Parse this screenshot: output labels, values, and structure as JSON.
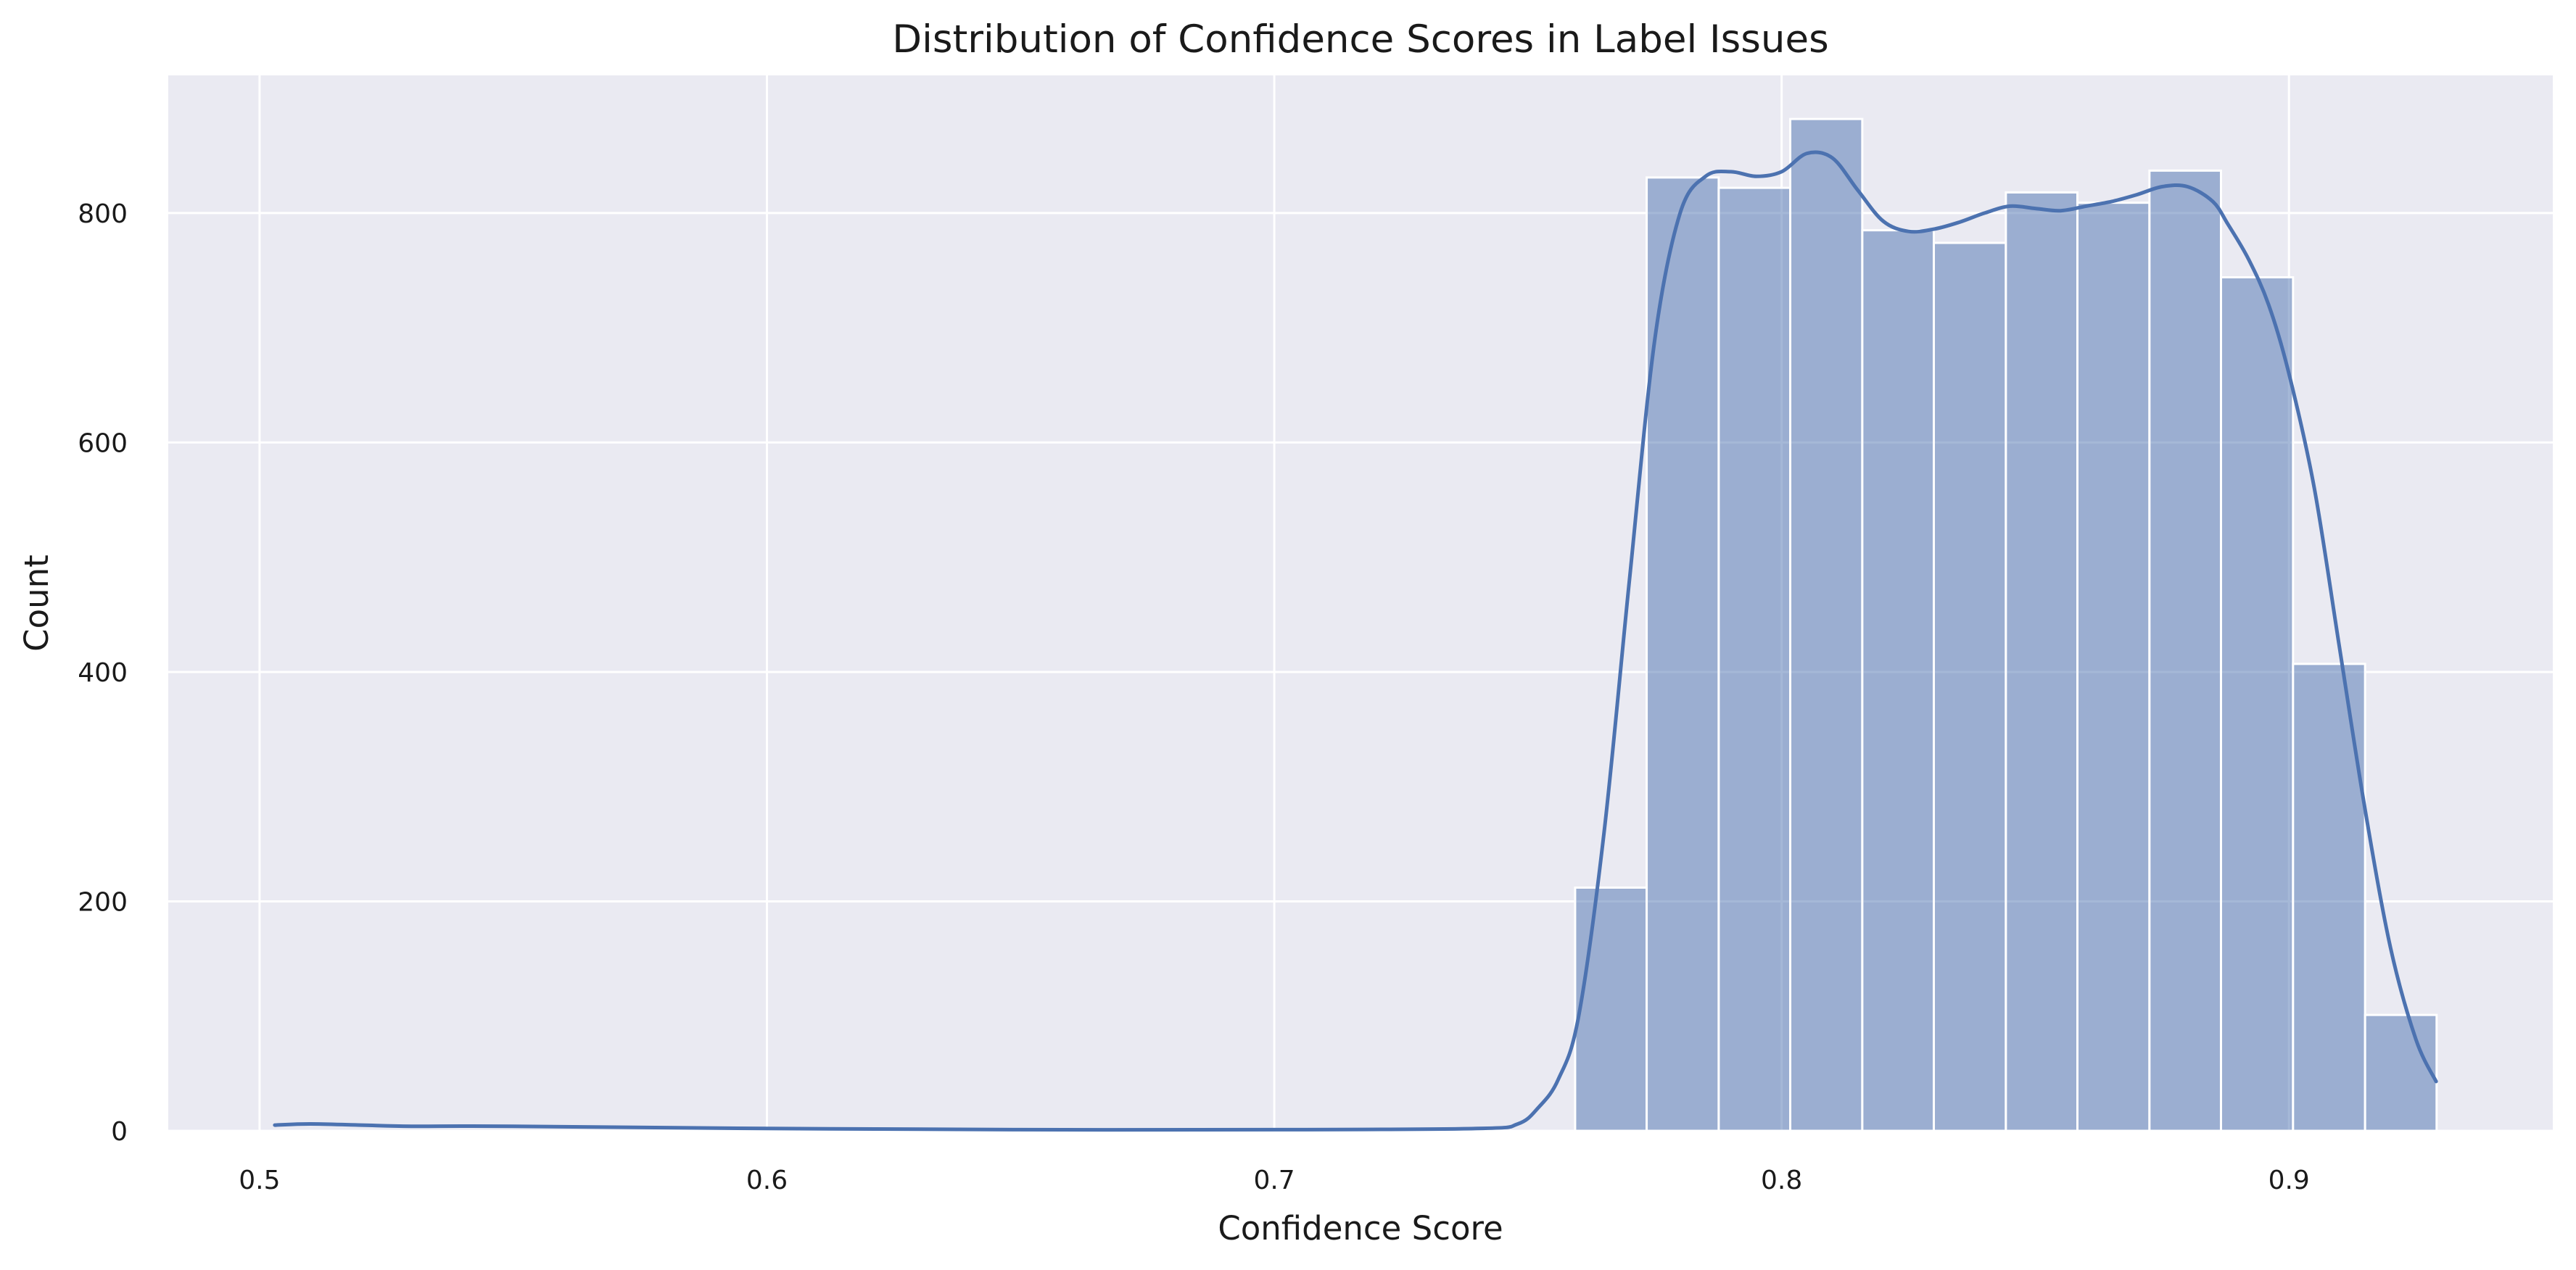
{
  "chart_data": {
    "type": "bar",
    "subtype": "histogram-with-kde",
    "title": "Distribution of Confidence Scores in Label Issues",
    "xlabel": "Confidence Score",
    "ylabel": "Count",
    "xlim": [
      0.482,
      0.952
    ],
    "ylim": [
      0,
      920
    ],
    "grid": true,
    "legend": "none",
    "colors": {
      "background": "#eaeaf2",
      "grid": "#ffffff",
      "bar_fill": "#4c72b0",
      "bar_fill_opacity": 0.5,
      "bar_edge": "#ffffff",
      "kde_line": "#4c72b0"
    },
    "x_ticks": [
      {
        "value": 0.5,
        "label": "0.5"
      },
      {
        "value": 0.6,
        "label": "0.6"
      },
      {
        "value": 0.7,
        "label": "0.7"
      },
      {
        "value": 0.8,
        "label": "0.8"
      },
      {
        "value": 0.9,
        "label": "0.9"
      }
    ],
    "y_ticks": [
      {
        "value": 0,
        "label": "0"
      },
      {
        "value": 200,
        "label": "200"
      },
      {
        "value": 400,
        "label": "400"
      },
      {
        "value": 600,
        "label": "600"
      },
      {
        "value": 800,
        "label": "800"
      }
    ],
    "bins": [
      {
        "x0": 0.7593,
        "x1": 0.7734,
        "count": 212
      },
      {
        "x0": 0.7734,
        "x1": 0.7876,
        "count": 831
      },
      {
        "x0": 0.7876,
        "x1": 0.8017,
        "count": 822
      },
      {
        "x0": 0.8017,
        "x1": 0.8159,
        "count": 882
      },
      {
        "x0": 0.8159,
        "x1": 0.83,
        "count": 785
      },
      {
        "x0": 0.83,
        "x1": 0.8442,
        "count": 774
      },
      {
        "x0": 0.8442,
        "x1": 0.8583,
        "count": 818
      },
      {
        "x0": 0.8583,
        "x1": 0.8725,
        "count": 809
      },
      {
        "x0": 0.8725,
        "x1": 0.8866,
        "count": 837
      },
      {
        "x0": 0.8866,
        "x1": 0.9008,
        "count": 744
      },
      {
        "x0": 0.9008,
        "x1": 0.915,
        "count": 407
      },
      {
        "x0": 0.915,
        "x1": 0.9291,
        "count": 101
      }
    ],
    "kde": {
      "x": [
        0.503,
        0.51,
        0.52,
        0.53,
        0.55,
        0.6,
        0.65,
        0.7,
        0.74,
        0.748,
        0.752,
        0.756,
        0.76,
        0.765,
        0.77,
        0.775,
        0.78,
        0.785,
        0.79,
        0.795,
        0.8,
        0.805,
        0.81,
        0.815,
        0.82,
        0.825,
        0.83,
        0.835,
        0.84,
        0.845,
        0.85,
        0.855,
        0.86,
        0.865,
        0.87,
        0.875,
        0.88,
        0.885,
        0.888,
        0.892,
        0.896,
        0.9,
        0.905,
        0.91,
        0.915,
        0.92,
        0.925,
        0.929
      ],
      "y": [
        5,
        6,
        5,
        4,
        4,
        2,
        1,
        1,
        2,
        6,
        20,
        45,
        100,
        260,
        480,
        690,
        800,
        832,
        836,
        832,
        836,
        852,
        848,
        820,
        793,
        784,
        786,
        792,
        800,
        806,
        804,
        802,
        806,
        810,
        816,
        823,
        823,
        810,
        790,
        760,
        720,
        660,
        560,
        420,
        280,
        160,
        80,
        43
      ]
    }
  }
}
